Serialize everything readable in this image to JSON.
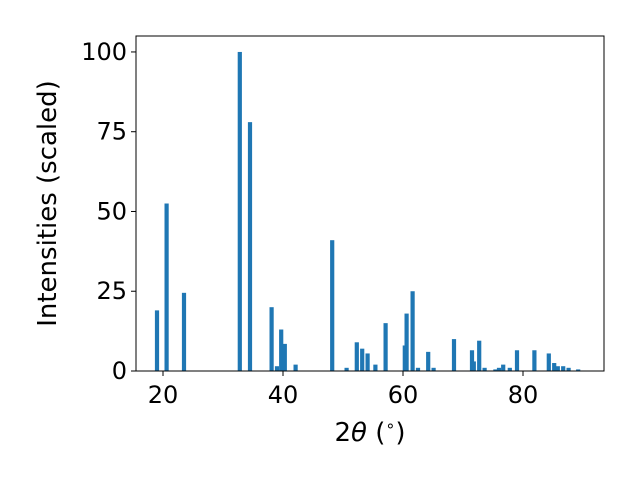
{
  "chart_data": {
    "type": "bar",
    "xlabel_parts": [
      "2",
      "θ",
      " (",
      "∘",
      ")"
    ],
    "ylabel": "Intensities (scaled)",
    "xlim": [
      15.5,
      93.5
    ],
    "ylim": [
      0,
      105
    ],
    "xticks": [
      20,
      40,
      60,
      80
    ],
    "yticks": [
      0,
      25,
      50,
      75,
      100
    ],
    "bar_color": "#1f77b4",
    "grid": false,
    "x": [
      19.0,
      20.6,
      23.5,
      32.8,
      34.5,
      38.1,
      39.0,
      39.7,
      40.3,
      42.1,
      48.2,
      50.6,
      52.3,
      53.2,
      54.1,
      55.4,
      57.1,
      60.3,
      60.6,
      61.6,
      62.5,
      64.2,
      65.1,
      68.5,
      71.5,
      71.8,
      72.7,
      73.6,
      75.4,
      76.0,
      76.7,
      77.8,
      79.0,
      81.9,
      84.3,
      85.2,
      85.8,
      86.7,
      87.6,
      89.2
    ],
    "values": [
      19,
      52.5,
      24.5,
      100,
      78,
      20,
      1.5,
      13,
      8.5,
      2,
      41,
      1,
      9,
      7,
      5.5,
      2,
      15,
      8,
      18,
      25,
      1,
      6,
      1,
      10,
      6.5,
      3,
      9.5,
      1,
      0.5,
      1,
      2,
      1,
      6.5,
      6.5,
      5.5,
      2.5,
      1.5,
      1.5,
      1,
      0.5
    ]
  }
}
